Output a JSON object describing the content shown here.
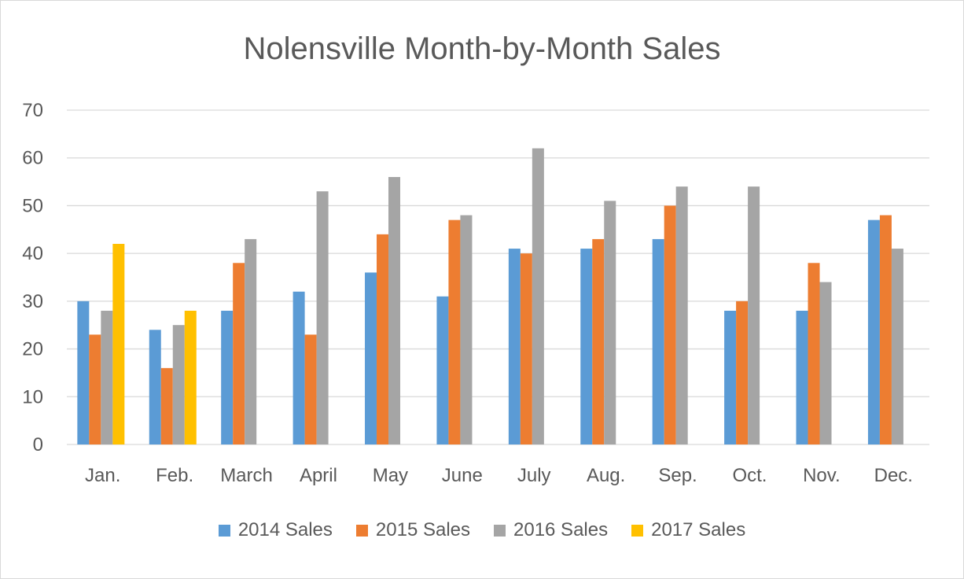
{
  "chart_data": {
    "type": "bar",
    "title": "Nolensville Month-by-Month Sales",
    "categories": [
      "Jan.",
      "Feb.",
      "March",
      "April",
      "May",
      "June",
      "July",
      "Aug.",
      "Sep.",
      "Oct.",
      "Nov.",
      "Dec."
    ],
    "series": [
      {
        "name": "2014 Sales",
        "color": "#5B9BD5",
        "values": [
          30,
          24,
          28,
          32,
          36,
          31,
          41,
          41,
          43,
          28,
          28,
          47
        ]
      },
      {
        "name": "2015 Sales",
        "color": "#ED7D31",
        "values": [
          23,
          16,
          38,
          23,
          44,
          47,
          40,
          43,
          50,
          30,
          38,
          48
        ]
      },
      {
        "name": "2016 Sales",
        "color": "#A5A5A5",
        "values": [
          28,
          25,
          43,
          53,
          56,
          48,
          62,
          51,
          54,
          54,
          34,
          41
        ]
      },
      {
        "name": "2017 Sales",
        "color": "#FFC000",
        "values": [
          42,
          28,
          null,
          null,
          null,
          null,
          null,
          null,
          null,
          null,
          null,
          null
        ]
      }
    ],
    "ylim": [
      0,
      70
    ],
    "yticks": [
      0,
      10,
      20,
      30,
      40,
      50,
      60,
      70
    ],
    "grid": true,
    "legend": "bottom",
    "xlabel": "",
    "ylabel": ""
  }
}
